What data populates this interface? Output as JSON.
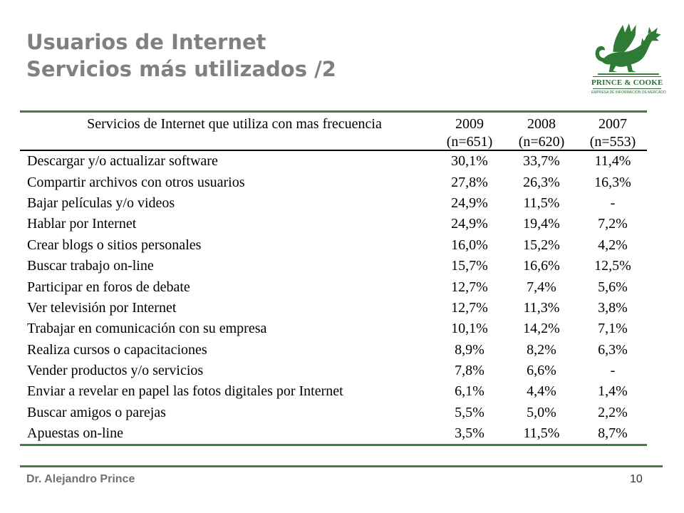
{
  "slide": {
    "title_line1": "Usuarios de Internet",
    "title_line2": "Servicios más utilizados /2",
    "footer_author": "Dr. Alejandro Prince",
    "page_number": "10"
  },
  "logo": {
    "icon": "dragon-icon",
    "brand": "PRINCE & COOKE",
    "tagline": "EMPRESA DE INFORMACIÓN DE MERCADO"
  },
  "colors": {
    "title": "#808080",
    "accent_green": "#3f7f3f",
    "logo_green": "#2f7a34"
  },
  "table": {
    "header": {
      "label": "Servicios de Internet que utiliza con mas frecuencia",
      "columns": [
        {
          "year": "2009",
          "n": "(n=651)"
        },
        {
          "year": "2008",
          "n": "(n=620)"
        },
        {
          "year": "2007",
          "n": "(n=553)"
        }
      ]
    },
    "rows": [
      {
        "label": "Descargar y/o actualizar software",
        "values": [
          "30,1%",
          "33,7%",
          "11,4%"
        ]
      },
      {
        "label": "Compartir archivos con otros usuarios",
        "values": [
          "27,8%",
          "26,3%",
          "16,3%"
        ]
      },
      {
        "label": "Bajar películas y/o videos",
        "values": [
          "24,9%",
          "11,5%",
          "-"
        ]
      },
      {
        "label": "Hablar por Internet",
        "values": [
          "24,9%",
          "19,4%",
          "7,2%"
        ]
      },
      {
        "label": "Crear blogs o sitios personales",
        "values": [
          "16,0%",
          "15,2%",
          "4,2%"
        ]
      },
      {
        "label": "Buscar trabajo on-line",
        "values": [
          "15,7%",
          "16,6%",
          "12,5%"
        ]
      },
      {
        "label": "Participar en foros de debate",
        "values": [
          "12,7%",
          "7,4%",
          "5,6%"
        ]
      },
      {
        "label": "Ver televisión por Internet",
        "values": [
          "12,7%",
          "11,3%",
          "3,8%"
        ]
      },
      {
        "label": "Trabajar en comunicación con su empresa",
        "values": [
          "10,1%",
          "14,2%",
          "7,1%"
        ]
      },
      {
        "label": "Realiza cursos o capacitaciones",
        "values": [
          "8,9%",
          "8,2%",
          "6,3%"
        ]
      },
      {
        "label": "Vender productos y/o servicios",
        "values": [
          "7,8%",
          "6,6%",
          "-"
        ]
      },
      {
        "label": "Enviar a revelar en papel las fotos digitales por Internet",
        "values": [
          "6,1%",
          "4,4%",
          "1,4%"
        ]
      },
      {
        "label": "Buscar amigos o parejas",
        "values": [
          "5,5%",
          "5,0%",
          "2,2%"
        ]
      },
      {
        "label": "Apuestas on-line",
        "values": [
          "3,5%",
          "11,5%",
          "8,7%"
        ]
      }
    ]
  }
}
